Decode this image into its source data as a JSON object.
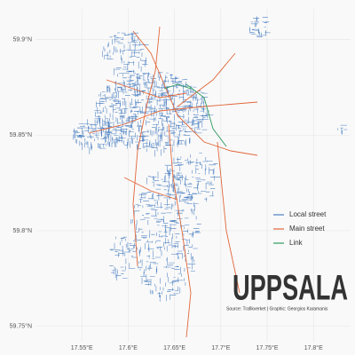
{
  "chart_data": {
    "type": "map",
    "title": "UPPSALA",
    "source": "Source: Trafikverket | Graphic: Georgios Karamanis",
    "xlim": [
      17.5,
      17.84
    ],
    "ylim": [
      59.742,
      59.916
    ],
    "xticks": [
      {
        "value": 17.55,
        "label": "17.55°E"
      },
      {
        "value": 17.6,
        "label": "17.6°E"
      },
      {
        "value": 17.65,
        "label": "17.65°E"
      },
      {
        "value": 17.7,
        "label": "17.7°E"
      },
      {
        "value": 17.75,
        "label": "17.75°E"
      },
      {
        "value": 17.8,
        "label": "17.8°E"
      }
    ],
    "yticks": [
      {
        "value": 59.75,
        "label": "59.75°N"
      },
      {
        "value": 59.8,
        "label": "59.8°N"
      },
      {
        "value": 59.85,
        "label": "59.85°N"
      },
      {
        "value": 59.9,
        "label": "59.9°N"
      }
    ],
    "grid": true,
    "legend": [
      {
        "name": "Local street",
        "color": "#4a7fc1"
      },
      {
        "name": "Main street",
        "color": "#e0673a"
      },
      {
        "name": "Link",
        "color": "#2e9a5e"
      }
    ]
  }
}
